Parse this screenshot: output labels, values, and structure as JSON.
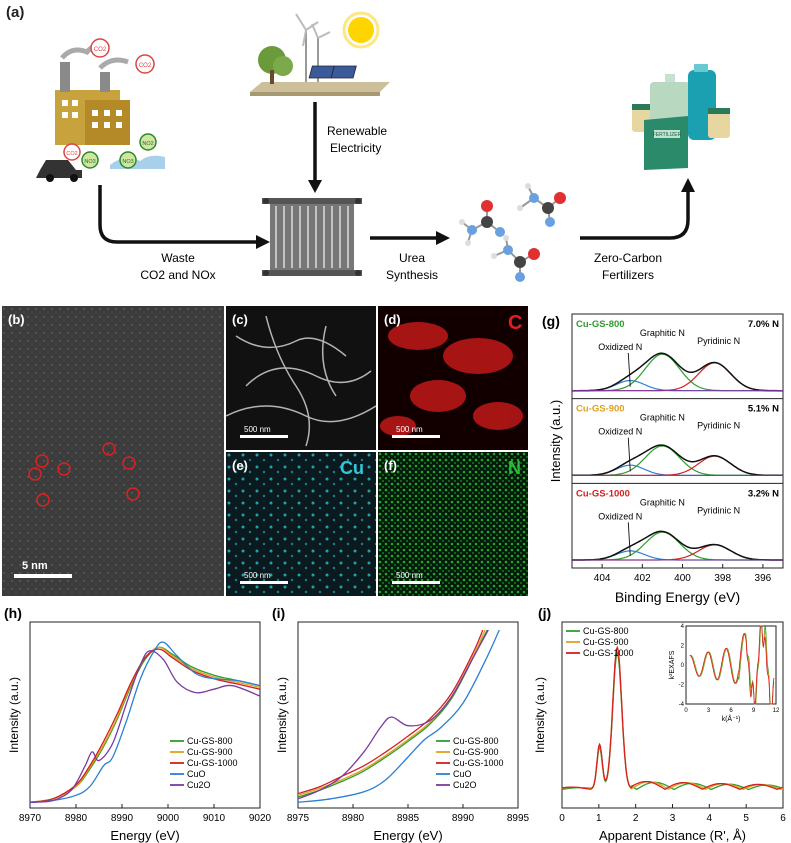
{
  "panel_a": {
    "letter": "(a)",
    "renewable_label": [
      "Renewable",
      "Electricity"
    ],
    "waste_label": [
      "Waste",
      "CO2 and NOx"
    ],
    "urea_label": [
      "Urea",
      "Synthesis"
    ],
    "fertilizer_label": [
      "Zero-Carbon",
      "Fertilizers"
    ],
    "co2": "CO2",
    "no2": "NO2",
    "no3": "NO3",
    "fertilizer_bag": "FERTILIZER"
  },
  "panel_b": {
    "letter": "(b)",
    "scale": "5 nm"
  },
  "panel_c": {
    "letter": "(c)",
    "scale": "500 nm"
  },
  "panel_d": {
    "letter": "(d)",
    "element": "C",
    "scale": "500 nm"
  },
  "panel_e": {
    "letter": "(e)",
    "element": "Cu",
    "scale": "500 nm"
  },
  "panel_f": {
    "letter": "(f)",
    "element": "N",
    "scale": "500 nm"
  },
  "colors": {
    "cu_gs_800": "#2e9e2e",
    "cu_gs_900": "#e0a020",
    "cu_gs_1000": "#d42020",
    "cuo": "#2b7fd4",
    "cu2o": "#7a3aa0"
  },
  "chart_data": [
    {
      "panel": "(g)",
      "type": "line",
      "xlabel": "Binding Energy (eV)",
      "ylabel": "Intensity (a.u.)",
      "xlim": [
        405.5,
        395
      ],
      "xticks": [
        404,
        402,
        400,
        398,
        396
      ],
      "subpanels": [
        {
          "sample": "Cu-GS-800",
          "content": "7.0% N",
          "color": "#2e9e2e",
          "peaks": [
            {
              "name": "Oxidized N",
              "x": 402.6,
              "h": 0.2
            },
            {
              "name": "Graphitic N",
              "x": 401.0,
              "h": 0.72
            },
            {
              "name": "Pyridinic N",
              "x": 398.4,
              "h": 0.55
            }
          ]
        },
        {
          "sample": "Cu-GS-900",
          "content": "5.1% N",
          "color": "#e0a020",
          "peaks": [
            {
              "name": "Oxidized N",
              "x": 402.6,
              "h": 0.2
            },
            {
              "name": "Graphitic N",
              "x": 401.0,
              "h": 0.58
            },
            {
              "name": "Pyridinic N",
              "x": 398.4,
              "h": 0.38
            }
          ]
        },
        {
          "sample": "Cu-GS-1000",
          "content": "3.2% N",
          "color": "#d42020",
          "peaks": [
            {
              "name": "Oxidized N",
              "x": 402.6,
              "h": 0.18
            },
            {
              "name": "Graphitic N",
              "x": 401.0,
              "h": 0.55
            },
            {
              "name": "Pyridinic N",
              "x": 398.4,
              "h": 0.3
            }
          ]
        }
      ]
    },
    {
      "panel": "(h)",
      "type": "line",
      "xlabel": "Energy (eV)",
      "ylabel": "Intensity (a.u.)",
      "xlim": [
        8970,
        9020
      ],
      "xticks": [
        8970,
        8980,
        8990,
        9000,
        9010,
        9020
      ],
      "series": [
        {
          "name": "Cu-GS-800",
          "color": "#2e9e2e",
          "x": [
            8970,
            8975,
            8980,
            8983,
            8986,
            8989,
            8992,
            8995,
            8998,
            9001,
            9005,
            9010,
            9015,
            9020
          ],
          "y": [
            0.01,
            0.03,
            0.1,
            0.2,
            0.33,
            0.49,
            0.68,
            0.83,
            0.9,
            0.86,
            0.79,
            0.74,
            0.71,
            0.68
          ]
        },
        {
          "name": "Cu-GS-900",
          "color": "#e0a020",
          "x": [
            8970,
            8975,
            8980,
            8983,
            8986,
            8989,
            8992,
            8995,
            8998,
            9001,
            9005,
            9010,
            9015,
            9020
          ],
          "y": [
            0.01,
            0.03,
            0.1,
            0.21,
            0.34,
            0.5,
            0.69,
            0.84,
            0.9,
            0.85,
            0.78,
            0.73,
            0.7,
            0.67
          ]
        },
        {
          "name": "Cu-GS-1000",
          "color": "#d42020",
          "x": [
            8970,
            8975,
            8980,
            8983,
            8986,
            8989,
            8992,
            8995,
            8998,
            9001,
            9005,
            9010,
            9015,
            9020
          ],
          "y": [
            0.01,
            0.03,
            0.11,
            0.22,
            0.36,
            0.52,
            0.7,
            0.84,
            0.89,
            0.84,
            0.77,
            0.72,
            0.69,
            0.66
          ]
        },
        {
          "name": "CuO",
          "color": "#2b7fd4",
          "x": [
            8970,
            8975,
            8980,
            8983,
            8986,
            8988,
            8991,
            8994,
            8997,
            8999,
            9002,
            9006,
            9010,
            9015,
            9020
          ],
          "y": [
            0.01,
            0.02,
            0.05,
            0.1,
            0.22,
            0.27,
            0.48,
            0.72,
            0.88,
            0.93,
            0.85,
            0.75,
            0.72,
            0.71,
            0.68
          ]
        },
        {
          "name": "Cu2O",
          "color": "#7a3aa0",
          "x": [
            8970,
            8975,
            8979,
            8982,
            8983.5,
            8985,
            8988,
            8991,
            8994,
            8996,
            8999,
            9002,
            9006,
            9010,
            9014,
            9020
          ],
          "y": [
            0.01,
            0.02,
            0.08,
            0.22,
            0.3,
            0.25,
            0.35,
            0.58,
            0.8,
            0.88,
            0.83,
            0.7,
            0.64,
            0.66,
            0.68,
            0.62
          ]
        }
      ]
    },
    {
      "panel": "(i)",
      "type": "line",
      "xlabel": "Energy (eV)",
      "ylabel": "Intensity (a.u.)",
      "xlim": [
        8975,
        8995
      ],
      "xticks": [
        8975,
        8980,
        8985,
        8990,
        8995
      ],
      "series": [
        {
          "name": "Cu-GS-800",
          "color": "#2e9e2e",
          "x": [
            8975,
            8977,
            8979,
            8981,
            8983,
            8985,
            8987,
            8989,
            8991,
            8992.2
          ],
          "y": [
            0.04,
            0.08,
            0.13,
            0.19,
            0.27,
            0.36,
            0.46,
            0.61,
            0.85,
            1.0
          ]
        },
        {
          "name": "Cu-GS-900",
          "color": "#e0a020",
          "x": [
            8975,
            8977,
            8979,
            8981,
            8983,
            8985,
            8987,
            8989,
            8991,
            8992.0
          ],
          "y": [
            0.05,
            0.09,
            0.14,
            0.2,
            0.28,
            0.37,
            0.47,
            0.62,
            0.86,
            1.0
          ]
        },
        {
          "name": "Cu-GS-1000",
          "color": "#d42020",
          "x": [
            8975,
            8977,
            8979,
            8981,
            8983,
            8985,
            8987,
            8989,
            8991,
            8991.8
          ],
          "y": [
            0.06,
            0.1,
            0.16,
            0.22,
            0.3,
            0.39,
            0.49,
            0.64,
            0.88,
            1.0
          ]
        },
        {
          "name": "CuO",
          "color": "#2b7fd4",
          "x": [
            8975,
            8978,
            8981,
            8983,
            8985,
            8986.5,
            8988,
            8990,
            8992,
            8993.3
          ],
          "y": [
            0.01,
            0.03,
            0.07,
            0.14,
            0.27,
            0.37,
            0.44,
            0.58,
            0.82,
            1.0
          ]
        },
        {
          "name": "Cu2O",
          "color": "#7a3aa0",
          "x": [
            8975,
            8977,
            8979,
            8981,
            8982.5,
            8983.5,
            8985,
            8987,
            8989,
            8991,
            8992.3
          ],
          "y": [
            0.03,
            0.08,
            0.16,
            0.3,
            0.44,
            0.5,
            0.45,
            0.48,
            0.62,
            0.85,
            1.0
          ]
        }
      ]
    },
    {
      "panel": "(j)",
      "type": "line",
      "xlabel": "Apparent Distance (R', Å)",
      "ylabel": "Intensity (a.u.)",
      "xlim": [
        0,
        6
      ],
      "xticks": [
        0,
        1,
        2,
        3,
        4,
        5,
        6
      ],
      "series": [
        {
          "name": "Cu-GS-800",
          "color": "#2e9e2e"
        },
        {
          "name": "Cu-GS-900",
          "color": "#e0a020"
        },
        {
          "name": "Cu-GS-1000",
          "color": "#d42020"
        }
      ],
      "main_peak_R": 1.5,
      "inset": {
        "ylabel": "k²EXAFS",
        "xlabel": "k(Å⁻¹)",
        "xlim": [
          0,
          12
        ],
        "ylim": [
          -4,
          4
        ],
        "xticks": [
          0,
          3,
          6,
          9,
          12
        ],
        "yticks": [
          -4,
          -2,
          0,
          2,
          4
        ]
      }
    }
  ]
}
